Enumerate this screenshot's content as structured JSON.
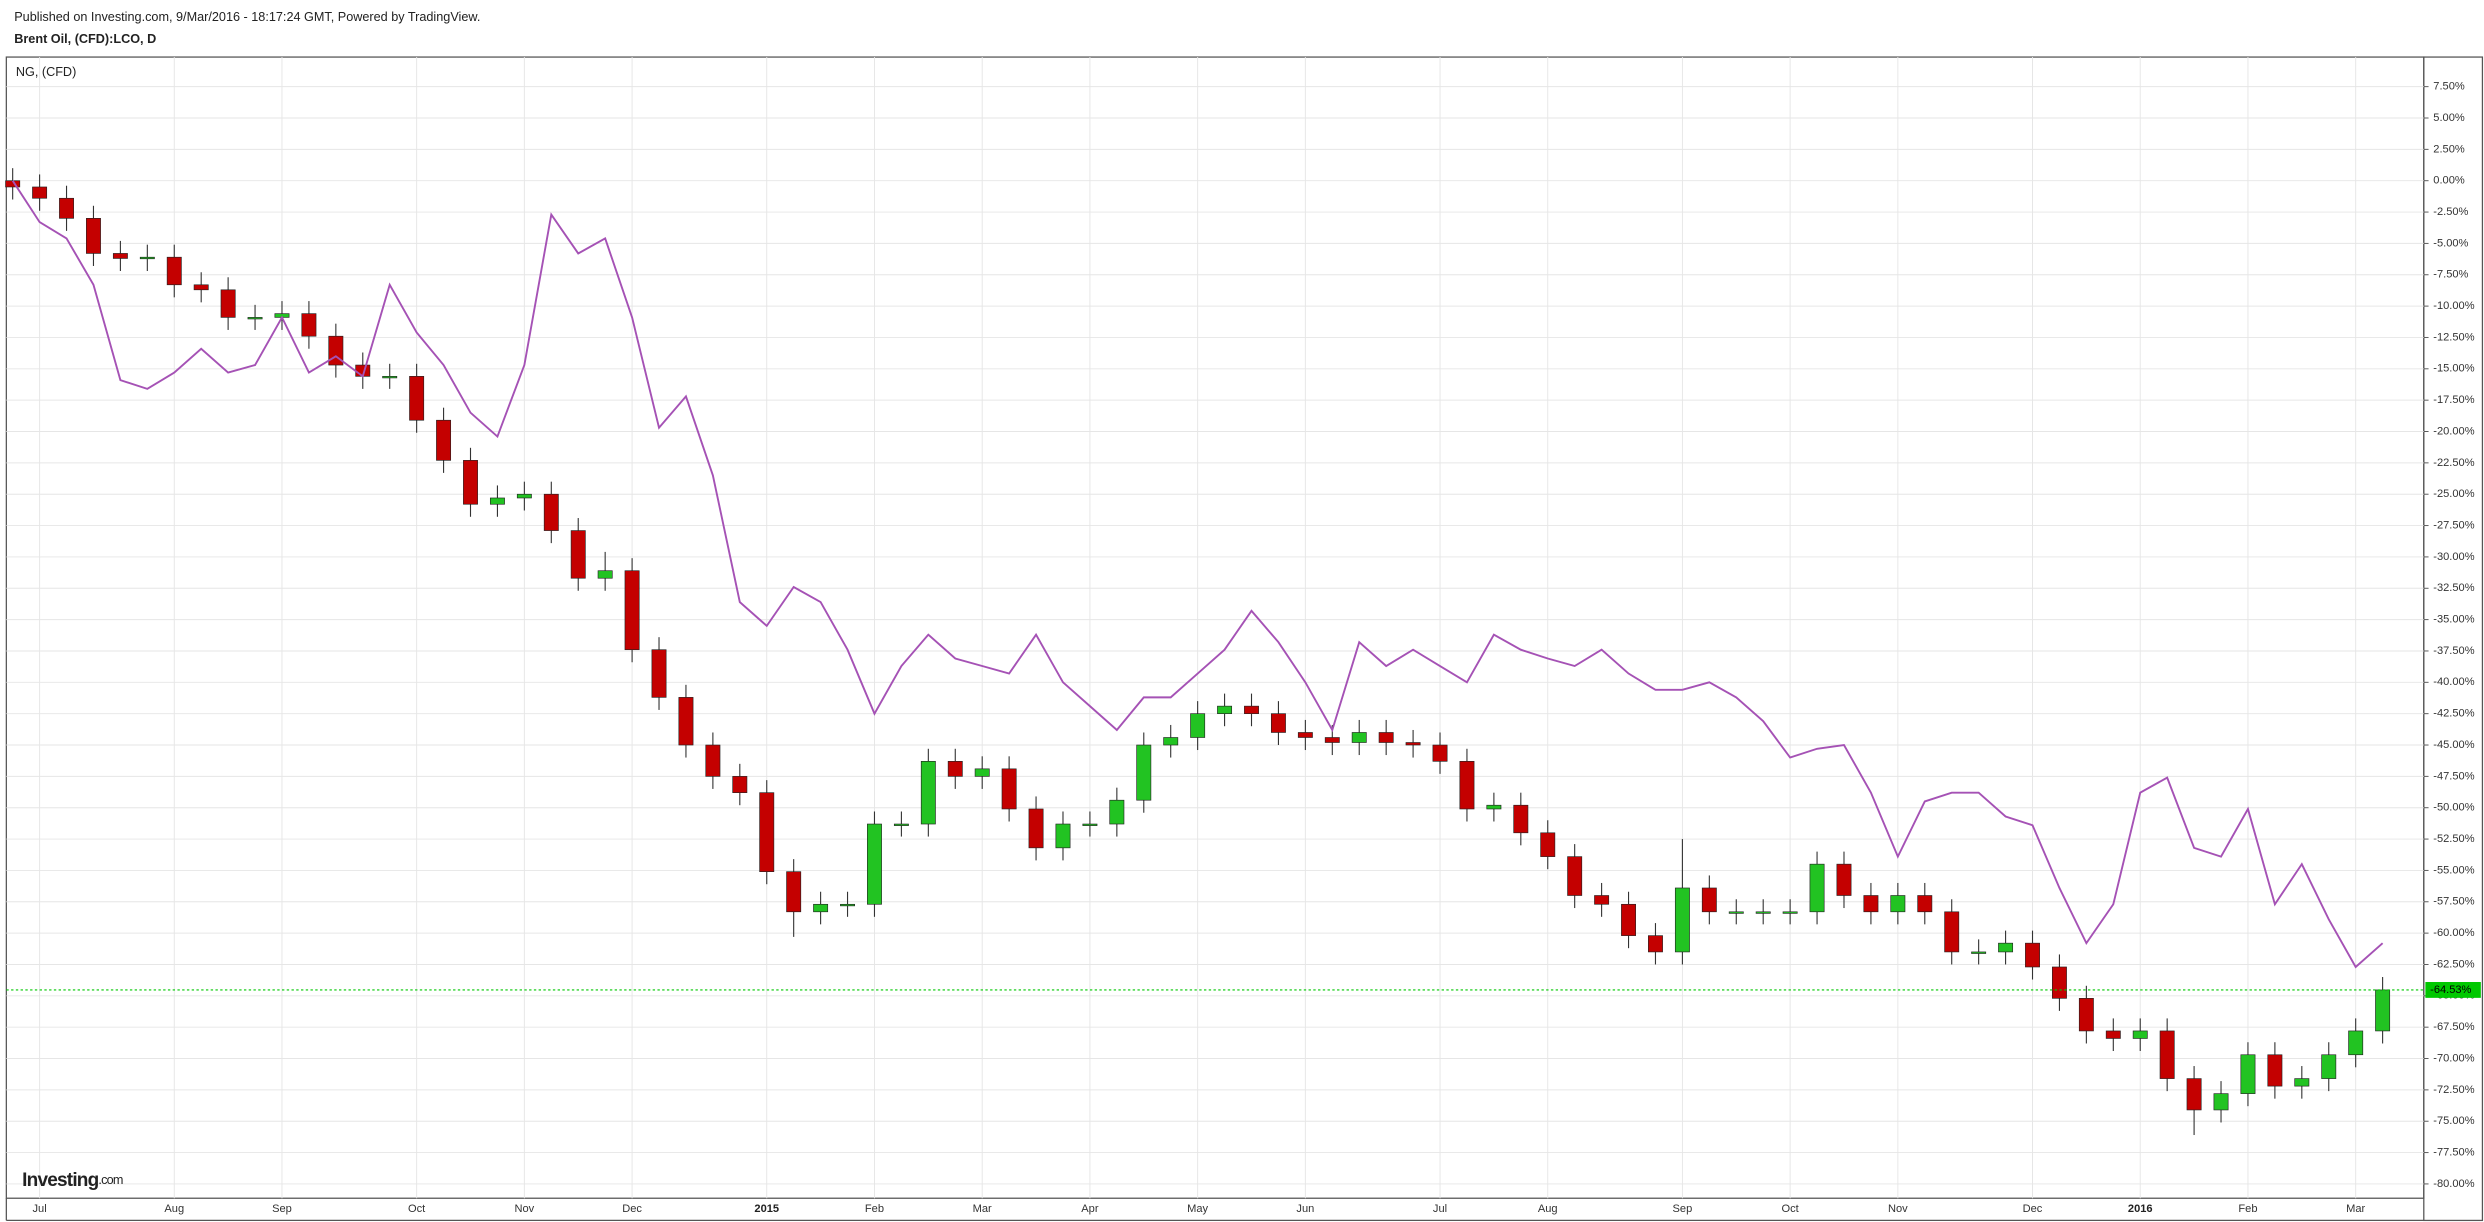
{
  "chart_data": {
    "type": "candlestick",
    "header": "Published on Investing.com, 9/Mar/2016 - 18:17:24 GMT, Powered by TradingView.",
    "title": "Brent Oil, (CFD):LCO, D",
    "categories": [
      null,
      "Jul",
      null,
      null,
      null,
      null,
      "Aug",
      null,
      null,
      null,
      "Sep",
      null,
      null,
      null,
      null,
      "Oct",
      null,
      null,
      null,
      "Nov",
      null,
      null,
      null,
      "Dec",
      null,
      null,
      null,
      null,
      "2015",
      null,
      null,
      null,
      "Feb",
      null,
      null,
      null,
      "Mar",
      null,
      null,
      null,
      "Apr",
      null,
      null,
      null,
      "May",
      null,
      null,
      null,
      "Jun",
      null,
      null,
      null,
      null,
      "Jul",
      null,
      null,
      null,
      "Aug",
      null,
      null,
      null,
      null,
      "Sep",
      null,
      null,
      null,
      "Oct",
      null,
      null,
      null,
      "Nov",
      null,
      null,
      null,
      null,
      "Dec",
      null,
      null,
      null,
      "2016",
      null,
      null,
      null,
      "Feb",
      null,
      null,
      null,
      "Mar",
      null
    ],
    "open": [
      0,
      -0.5,
      -1.4,
      -3.0,
      -5.8,
      -6.2,
      -6.1,
      -8.3,
      -8.7,
      -10.9,
      -10.9,
      -10.6,
      -12.4,
      -14.7,
      -15.6,
      -15.6,
      -19.1,
      -22.3,
      -25.8,
      -25.3,
      -25.0,
      -27.9,
      -31.7,
      -31.1,
      -37.4,
      -41.2,
      -45.0,
      -47.5,
      -48.8,
      -55.1,
      -58.3,
      -57.7,
      -57.7,
      -51.3,
      -51.3,
      -46.3,
      -47.5,
      -46.9,
      -50.1,
      -53.2,
      -51.3,
      -51.3,
      -49.4,
      -45.0,
      -44.4,
      -42.5,
      -41.9,
      -42.5,
      -44.0,
      -44.4,
      -44.8,
      -44.0,
      -44.8,
      -45.0,
      -46.3,
      -50.1,
      -49.8,
      -52.0,
      -53.9,
      -57.0,
      -57.7,
      -60.2,
      -61.5,
      -56.4,
      -58.3,
      -58.3,
      -58.3,
      -58.3,
      -54.5,
      -57.0,
      -58.3,
      -57.0,
      -58.3,
      -61.5,
      -61.5,
      -60.8,
      -62.7,
      -65.2,
      -67.8,
      -68.4,
      -67.8,
      -71.6,
      -74.1,
      -72.8,
      -69.7,
      -72.2,
      -71.6,
      -69.7,
      -67.8
    ],
    "high": [
      1.0,
      0.5,
      -0.4,
      -2.0,
      -4.8,
      -5.1,
      -5.1,
      -7.3,
      -7.7,
      -9.9,
      -9.6,
      -9.6,
      -11.4,
      -13.7,
      -14.6,
      -14.6,
      -18.1,
      -21.3,
      -24.3,
      -24.0,
      -24.0,
      -26.9,
      -29.6,
      -30.1,
      -36.4,
      -40.2,
      -44.0,
      -46.5,
      -47.8,
      -54.1,
      -56.7,
      -56.7,
      -50.3,
      -50.3,
      -45.3,
      -45.3,
      -45.9,
      -45.9,
      -49.1,
      -50.3,
      -50.3,
      -48.4,
      -44.0,
      -43.4,
      -41.5,
      -40.9,
      -40.9,
      -41.5,
      -43.0,
      -43.4,
      -43.0,
      -43.0,
      -43.8,
      -44.0,
      -45.3,
      -48.8,
      -48.8,
      -51.0,
      -52.9,
      -56.0,
      -56.7,
      -59.2,
      -52.5,
      -55.4,
      -57.3,
      -57.3,
      -57.3,
      -53.5,
      -53.5,
      -56.0,
      -56.0,
      -56.0,
      -57.3,
      -60.5,
      -59.8,
      -59.8,
      -61.7,
      -64.2,
      -66.8,
      -66.8,
      -66.8,
      -70.6,
      -71.8,
      -68.7,
      -68.7,
      -70.6,
      -68.7,
      -66.8,
      -63.5
    ],
    "low": [
      -1.5,
      -2.4,
      -4.0,
      -6.8,
      -7.2,
      -7.2,
      -9.3,
      -9.7,
      -11.9,
      -11.9,
      -11.9,
      -13.4,
      -15.7,
      -16.6,
      -16.6,
      -20.1,
      -23.3,
      -26.8,
      -26.8,
      -26.3,
      -28.9,
      -32.7,
      -32.7,
      -38.4,
      -42.2,
      -46.0,
      -48.5,
      -49.8,
      -56.1,
      -60.3,
      -59.3,
      -58.7,
      -58.7,
      -52.3,
      -52.3,
      -48.5,
      -48.5,
      -51.1,
      -54.2,
      -54.2,
      -52.3,
      -52.3,
      -50.4,
      -46.0,
      -45.4,
      -43.5,
      -43.5,
      -45.0,
      -45.4,
      -45.8,
      -45.8,
      -45.8,
      -46.0,
      -47.3,
      -51.1,
      -51.1,
      -53.0,
      -54.9,
      -58.0,
      -58.7,
      -61.2,
      -62.5,
      -62.5,
      -59.3,
      -59.3,
      -59.3,
      -59.3,
      -59.3,
      -58.0,
      -59.3,
      -59.3,
      -59.3,
      -62.5,
      -62.5,
      -62.5,
      -63.7,
      -66.2,
      -68.8,
      -69.4,
      -69.4,
      -72.6,
      -76.1,
      -75.1,
      -73.8,
      -73.2,
      -73.2,
      -72.6,
      -70.7,
      -68.8
    ],
    "close": [
      -0.5,
      -1.4,
      -3.0,
      -5.8,
      -6.2,
      -6.1,
      -8.3,
      -8.7,
      -10.9,
      -10.9,
      -10.6,
      -12.4,
      -14.7,
      -15.6,
      -15.6,
      -19.1,
      -22.3,
      -25.8,
      -25.3,
      -25.0,
      -27.9,
      -31.7,
      -31.1,
      -37.4,
      -41.2,
      -45.0,
      -47.5,
      -48.8,
      -55.1,
      -58.3,
      -57.7,
      -57.7,
      -51.3,
      -51.3,
      -46.3,
      -47.5,
      -46.9,
      -50.1,
      -53.2,
      -51.3,
      -51.3,
      -49.4,
      -45.0,
      -44.4,
      -42.5,
      -41.9,
      -42.5,
      -44.0,
      -44.4,
      -44.8,
      -44.0,
      -44.8,
      -45.0,
      -46.3,
      -50.1,
      -49.8,
      -52.0,
      -53.9,
      -57.0,
      -57.7,
      -60.2,
      -61.5,
      -56.4,
      -58.3,
      -58.3,
      -58.3,
      -58.3,
      -54.5,
      -57.0,
      -58.3,
      -57.0,
      -58.3,
      -61.5,
      -61.5,
      -60.8,
      -62.7,
      -65.2,
      -67.8,
      -68.4,
      -67.8,
      -71.6,
      -74.1,
      -72.8,
      -69.7,
      -72.2,
      -71.6,
      -69.7,
      -67.8,
      -64.53
    ],
    "up_color": "#22c322",
    "down_color": "#c40000",
    "last_color": "#00c800",
    "last_label": "-64.53%",
    "series": [
      {
        "name": "NG, (CFD)",
        "color": "#a552b5",
        "values": [
          0.0,
          -3.3,
          -4.6,
          -8.3,
          -15.9,
          -16.6,
          -15.3,
          -13.4,
          -15.3,
          -14.7,
          -10.9,
          -15.3,
          -14.0,
          -15.6,
          -8.3,
          -12.1,
          -14.7,
          -18.5,
          -20.4,
          -14.7,
          -2.7,
          -5.8,
          -4.6,
          -10.9,
          -19.7,
          -17.2,
          -23.5,
          -33.6,
          -35.5,
          -32.4,
          -33.6,
          -37.4,
          -42.5,
          -38.7,
          -36.2,
          -38.1,
          -38.7,
          -39.3,
          -36.2,
          -40.0,
          -41.9,
          -43.8,
          -41.2,
          -41.2,
          -39.3,
          -37.4,
          -34.3,
          -36.8,
          -40.0,
          -43.8,
          -36.8,
          -38.7,
          -37.4,
          -38.7,
          -40.0,
          -36.2,
          -37.4,
          -38.1,
          -38.7,
          -37.4,
          -39.3,
          -40.6,
          -40.6,
          -40.0,
          -41.2,
          -43.1,
          -46.0,
          -45.3,
          -45.0,
          -48.8,
          -53.9,
          -49.5,
          -48.8,
          -48.8,
          -50.7,
          -51.4,
          -56.4,
          -60.8,
          -57.7,
          -48.8,
          -47.6,
          -53.2,
          -53.9,
          -50.1,
          -57.7,
          -54.5,
          -58.9,
          -62.7,
          -60.8
        ]
      }
    ],
    "ylim": [
      -81.14,
      9.86
    ],
    "yticks": [
      {
        "value": 7.5,
        "label": "7.50%"
      },
      {
        "value": 5,
        "label": "5.00%"
      },
      {
        "value": 2.5,
        "label": "2.50%"
      },
      {
        "value": 0,
        "label": "0.00%"
      },
      {
        "value": -2.5,
        "label": "-2.50%"
      },
      {
        "value": -5,
        "label": "-5.00%"
      },
      {
        "value": -7.5,
        "label": "-7.50%"
      },
      {
        "value": -10,
        "label": "-10.00%"
      },
      {
        "value": -12.5,
        "label": "-12.50%"
      },
      {
        "value": -15,
        "label": "-15.00%"
      },
      {
        "value": -17.5,
        "label": "-17.50%"
      },
      {
        "value": -20,
        "label": "-20.00%"
      },
      {
        "value": -22.5,
        "label": "-22.50%"
      },
      {
        "value": -25,
        "label": "-25.00%"
      },
      {
        "value": -27.5,
        "label": "-27.50%"
      },
      {
        "value": -30,
        "label": "-30.00%"
      },
      {
        "value": -32.5,
        "label": "-32.50%"
      },
      {
        "value": -35,
        "label": "-35.00%"
      },
      {
        "value": -37.5,
        "label": "-37.50%"
      },
      {
        "value": -40,
        "label": "-40.00%"
      },
      {
        "value": -42.5,
        "label": "-42.50%"
      },
      {
        "value": -45,
        "label": "-45.00%"
      },
      {
        "value": -47.5,
        "label": "-47.50%"
      },
      {
        "value": -50,
        "label": "-50.00%"
      },
      {
        "value": -52.5,
        "label": "-52.50%"
      },
      {
        "value": -55,
        "label": "-55.00%"
      },
      {
        "value": -57.5,
        "label": "-57.50%"
      },
      {
        "value": -60,
        "label": "-60.00%"
      },
      {
        "value": -62.5,
        "label": "-62.50%"
      },
      {
        "value": -65,
        "label": "-65.00%"
      },
      {
        "value": -67.5,
        "label": "-67.50%"
      },
      {
        "value": -70,
        "label": "-70.00%"
      },
      {
        "value": -72.5,
        "label": "-72.50%"
      },
      {
        "value": -75,
        "label": "-75.00%"
      },
      {
        "value": -77.5,
        "label": "-77.50%"
      },
      {
        "value": -80,
        "label": "-80.00%"
      }
    ],
    "grid": true,
    "watermark": [
      "Investing",
      ".com"
    ]
  }
}
